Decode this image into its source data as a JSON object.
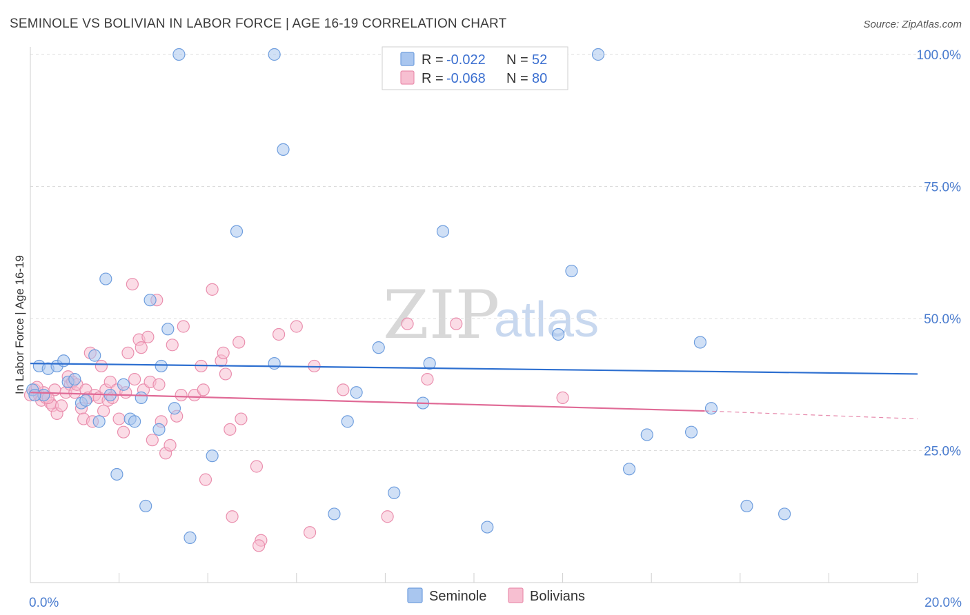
{
  "title": "SEMINOLE VS BOLIVIAN IN LABOR FORCE | AGE 16-19 CORRELATION CHART",
  "source": "Source: ZipAtlas.com",
  "watermark": {
    "zip": "ZIP",
    "atlas": "atlas"
  },
  "legend": {
    "r_label": "R =",
    "n_label": "N =",
    "seminole": {
      "r": "-0.022",
      "n": "52"
    },
    "bolivians": {
      "r": "-0.068",
      "n": "80"
    }
  },
  "bottom_legend": {
    "seminole": "Seminole",
    "bolivians": "Bolivians"
  },
  "colors": {
    "seminole_fill": "#a9c6ef",
    "seminole_stroke": "#6f9ede",
    "seminole_line": "#2d6fd0",
    "bolivian_fill": "#f7bfd1",
    "bolivian_stroke": "#ea8fae",
    "bolivian_line": "#e06a96",
    "grid": "#dcdcdc",
    "tick_text": "#4a7ccf"
  },
  "chart_data": {
    "type": "scatter",
    "title": "SEMINOLE VS BOLIVIAN IN LABOR FORCE | AGE 16-19 CORRELATION CHART",
    "xlabel": "",
    "ylabel": "In Labor Force | Age 16-19",
    "xlim": [
      0,
      20
    ],
    "ylim": [
      0,
      102
    ],
    "x_tick_labels": [
      "0.0%",
      "20.0%"
    ],
    "y_ticks": [
      25,
      50,
      75,
      100
    ],
    "y_tick_labels": [
      "25.0%",
      "50.0%",
      "75.0%",
      "100.0%"
    ],
    "series": [
      {
        "name": "Seminole",
        "r": -0.022,
        "n": 52,
        "trend": {
          "x": [
            0,
            20
          ],
          "y": [
            41.5,
            39.5
          ]
        },
        "points": [
          [
            0.05,
            36.5
          ],
          [
            0.2,
            41.0
          ],
          [
            0.3,
            35.5
          ],
          [
            0.4,
            40.5
          ],
          [
            0.6,
            41.0
          ],
          [
            0.75,
            42.0
          ],
          [
            0.85,
            38.0
          ],
          [
            1.0,
            38.5
          ],
          [
            1.15,
            34.0
          ],
          [
            1.25,
            34.5
          ],
          [
            1.45,
            43.0
          ],
          [
            1.55,
            30.5
          ],
          [
            1.7,
            57.5
          ],
          [
            1.8,
            35.5
          ],
          [
            1.95,
            20.5
          ],
          [
            2.1,
            37.5
          ],
          [
            2.25,
            31.0
          ],
          [
            2.35,
            30.5
          ],
          [
            2.5,
            35.0
          ],
          [
            2.6,
            14.5
          ],
          [
            2.7,
            53.5
          ],
          [
            2.9,
            29.0
          ],
          [
            2.95,
            41.0
          ],
          [
            3.1,
            48.0
          ],
          [
            3.25,
            33.0
          ],
          [
            3.35,
            100.0
          ],
          [
            3.6,
            8.5
          ],
          [
            4.1,
            24.0
          ],
          [
            4.65,
            66.5
          ],
          [
            5.5,
            100.0
          ],
          [
            5.5,
            41.5
          ],
          [
            5.7,
            82.0
          ],
          [
            6.85,
            13.0
          ],
          [
            7.15,
            30.5
          ],
          [
            7.35,
            36.0
          ],
          [
            7.85,
            44.5
          ],
          [
            8.2,
            17.0
          ],
          [
            8.85,
            34.0
          ],
          [
            9.0,
            41.5
          ],
          [
            9.3,
            66.5
          ],
          [
            10.3,
            10.5
          ],
          [
            11.9,
            47.0
          ],
          [
            12.2,
            59.0
          ],
          [
            12.8,
            100.0
          ],
          [
            13.5,
            21.5
          ],
          [
            13.9,
            28.0
          ],
          [
            14.9,
            28.5
          ],
          [
            15.1,
            45.5
          ],
          [
            15.35,
            33.0
          ],
          [
            16.15,
            14.5
          ],
          [
            17.0,
            13.0
          ],
          [
            0.1,
            35.5
          ]
        ]
      },
      {
        "name": "Bolivians",
        "r": -0.068,
        "n": 80,
        "trend": {
          "x": [
            0,
            15.2
          ],
          "y": [
            36.0,
            32.5
          ],
          "dashed_to": {
            "x": 20,
            "y": 31.0
          }
        },
        "points": [
          [
            0.0,
            35.5
          ],
          [
            0.1,
            36.5
          ],
          [
            0.2,
            35.5
          ],
          [
            0.25,
            34.5
          ],
          [
            0.3,
            36.0
          ],
          [
            0.35,
            35.0
          ],
          [
            0.45,
            34.0
          ],
          [
            0.5,
            33.5
          ],
          [
            0.55,
            36.5
          ],
          [
            0.6,
            32.0
          ],
          [
            0.7,
            33.5
          ],
          [
            0.8,
            36.0
          ],
          [
            0.85,
            39.0
          ],
          [
            0.9,
            37.5
          ],
          [
            0.95,
            38.0
          ],
          [
            1.0,
            36.0
          ],
          [
            1.05,
            37.5
          ],
          [
            1.15,
            33.0
          ],
          [
            1.2,
            31.0
          ],
          [
            1.25,
            36.5
          ],
          [
            1.3,
            35.0
          ],
          [
            1.35,
            43.5
          ],
          [
            1.4,
            30.5
          ],
          [
            1.45,
            35.5
          ],
          [
            1.55,
            35.0
          ],
          [
            1.6,
            41.0
          ],
          [
            1.65,
            32.5
          ],
          [
            1.7,
            36.5
          ],
          [
            1.75,
            34.5
          ],
          [
            1.8,
            38.0
          ],
          [
            1.85,
            35.0
          ],
          [
            1.95,
            36.5
          ],
          [
            2.0,
            31.0
          ],
          [
            2.1,
            28.5
          ],
          [
            2.15,
            36.0
          ],
          [
            2.2,
            43.5
          ],
          [
            2.3,
            56.5
          ],
          [
            2.35,
            38.5
          ],
          [
            2.45,
            46.0
          ],
          [
            2.5,
            44.5
          ],
          [
            2.55,
            36.5
          ],
          [
            2.65,
            46.5
          ],
          [
            2.7,
            38.0
          ],
          [
            2.75,
            27.0
          ],
          [
            2.85,
            53.5
          ],
          [
            2.9,
            37.5
          ],
          [
            2.95,
            30.5
          ],
          [
            3.05,
            24.5
          ],
          [
            3.15,
            26.0
          ],
          [
            3.2,
            45.0
          ],
          [
            3.3,
            31.5
          ],
          [
            3.4,
            35.5
          ],
          [
            3.45,
            48.5
          ],
          [
            3.7,
            35.5
          ],
          [
            3.85,
            41.0
          ],
          [
            3.9,
            36.5
          ],
          [
            3.95,
            19.5
          ],
          [
            4.1,
            55.5
          ],
          [
            4.3,
            42.0
          ],
          [
            4.35,
            43.5
          ],
          [
            4.4,
            39.5
          ],
          [
            4.5,
            29.0
          ],
          [
            4.55,
            12.5
          ],
          [
            4.7,
            45.5
          ],
          [
            4.75,
            31.0
          ],
          [
            5.1,
            22.0
          ],
          [
            5.2,
            8.0
          ],
          [
            5.15,
            7.0
          ],
          [
            5.6,
            47.0
          ],
          [
            6.0,
            48.5
          ],
          [
            6.3,
            9.5
          ],
          [
            6.4,
            41.0
          ],
          [
            7.05,
            36.5
          ],
          [
            8.05,
            12.5
          ],
          [
            8.5,
            49.0
          ],
          [
            8.95,
            38.5
          ],
          [
            9.6,
            49.0
          ],
          [
            12.0,
            35.0
          ],
          [
            0.15,
            37.0
          ],
          [
            0.4,
            35.0
          ]
        ]
      }
    ]
  }
}
